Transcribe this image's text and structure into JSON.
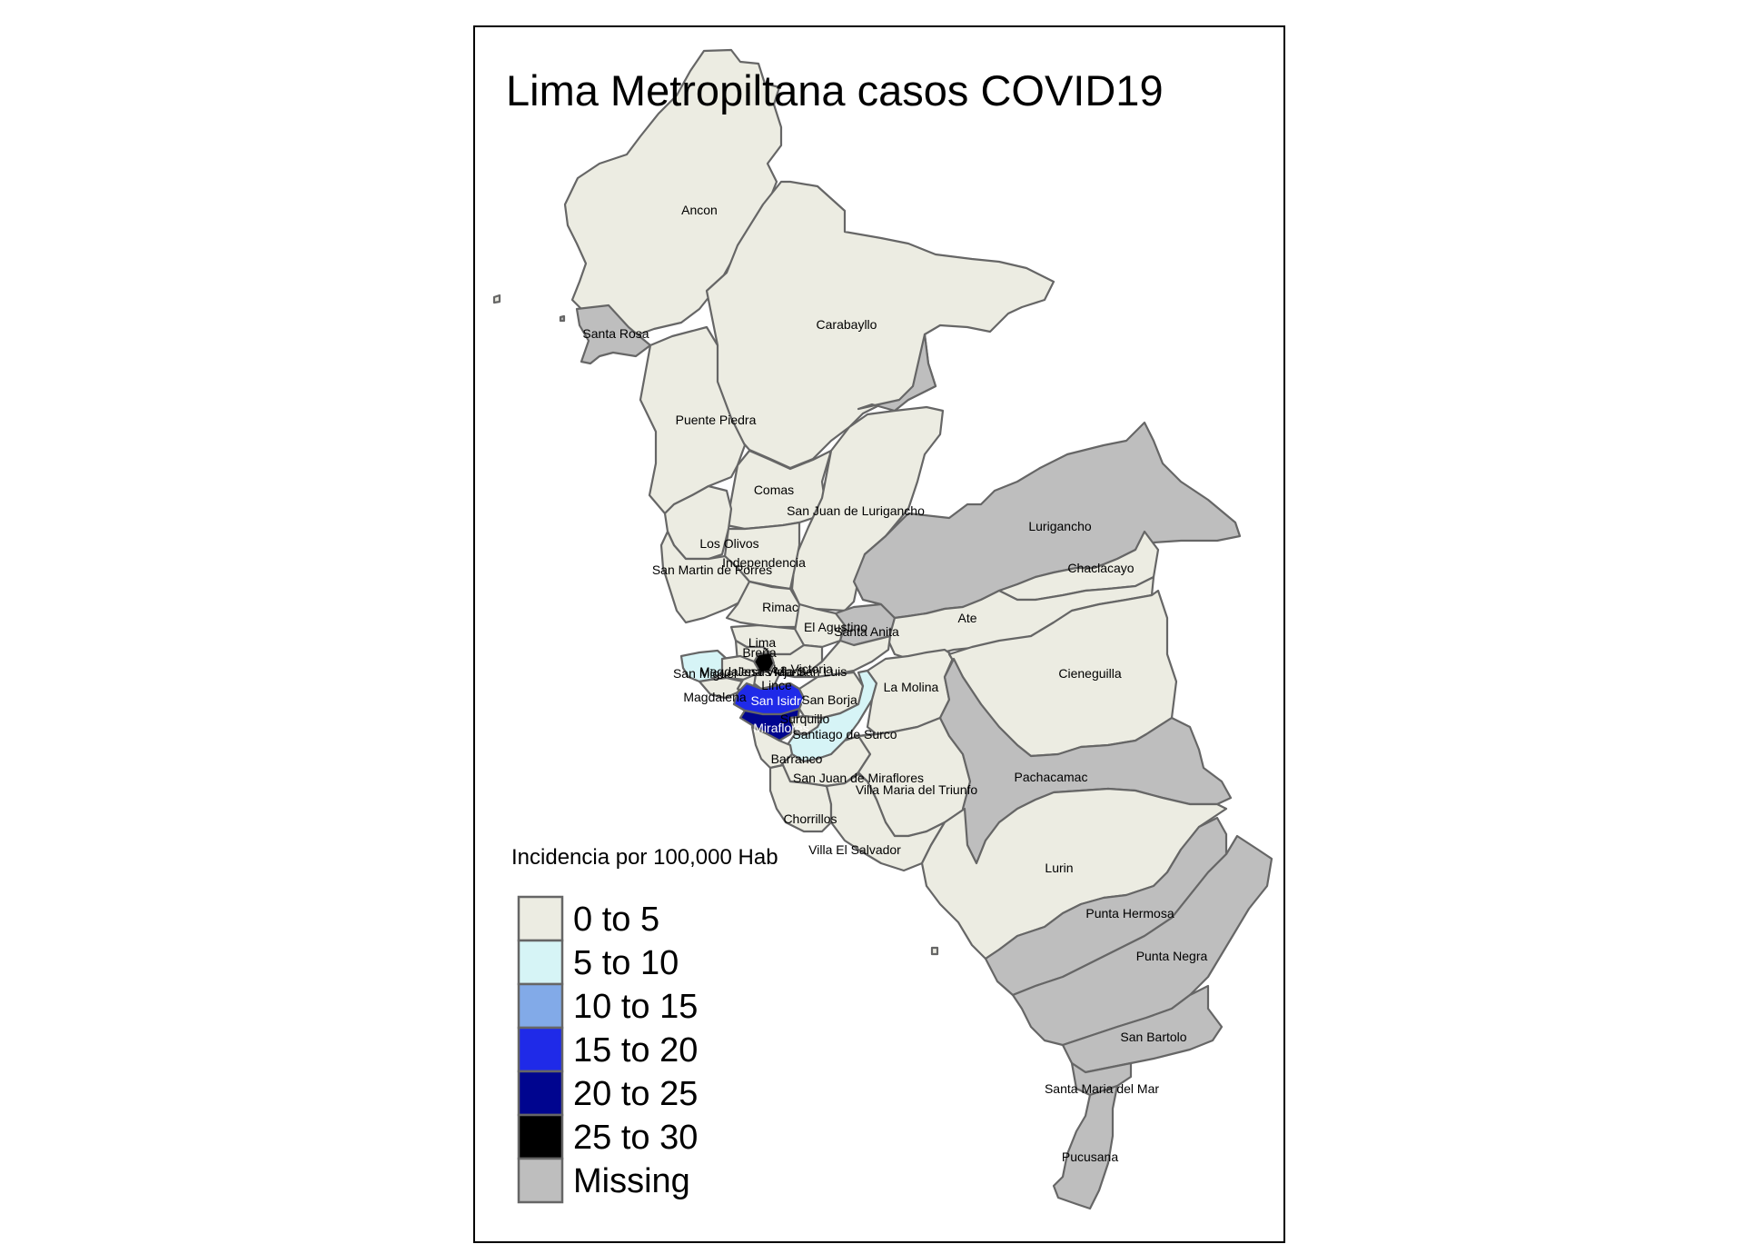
{
  "title": "Lima Metropiltana casos COVID19",
  "legend": {
    "title": "Incidencia por 100,000 Hab",
    "classes": [
      {
        "label": "0 to 5",
        "color": "#ecece2"
      },
      {
        "label": "5 to 10",
        "color": "#d6f4f6"
      },
      {
        "label": "10 to 15",
        "color": "#82aae8"
      },
      {
        "label": "15 to 20",
        "color": "#1f2ae8"
      },
      {
        "label": "20 to 25",
        "color": "#00058f"
      },
      {
        "label": "25 to 30",
        "color": "#000000"
      },
      {
        "label": "Missing",
        "color": "#bebebe"
      }
    ]
  },
  "districts": [
    {
      "name": "Ancon",
      "class": "0 to 5"
    },
    {
      "name": "Santa Rosa",
      "class": "Missing"
    },
    {
      "name": "Carabayllo",
      "class": "0 to 5"
    },
    {
      "name": "Puente Piedra",
      "class": "0 to 5"
    },
    {
      "name": "Comas",
      "class": "0 to 5"
    },
    {
      "name": "San Juan de Lurigancho",
      "class": "0 to 5"
    },
    {
      "name": "Los Olivos",
      "class": "0 to 5"
    },
    {
      "name": "Independencia",
      "class": "0 to 5"
    },
    {
      "name": "San Martin de Porres",
      "class": "0 to 5"
    },
    {
      "name": "Rimac",
      "class": "0 to 5"
    },
    {
      "name": "El Agustino",
      "class": "0 to 5"
    },
    {
      "name": "Santa Anita",
      "class": "Missing"
    },
    {
      "name": "Lurigancho",
      "class": "Missing"
    },
    {
      "name": "Chaclacayo",
      "class": "0 to 5"
    },
    {
      "name": "Ate",
      "class": "0 to 5"
    },
    {
      "name": "Lima",
      "class": "0 to 5"
    },
    {
      "name": "Breña",
      "class": "0 to 5"
    },
    {
      "name": "La Victoria",
      "class": "25 to 30"
    },
    {
      "name": "San Luis",
      "class": "0 to 5"
    },
    {
      "name": "Magdalena Vieja",
      "class": "0 to 5"
    },
    {
      "name": "San Miguel",
      "class": "5 to 10"
    },
    {
      "name": "Magdalena",
      "class": "0 to 5"
    },
    {
      "name": "Lince",
      "class": "0 to 5"
    },
    {
      "name": "Jesus Maria",
      "class": "0 to 5"
    },
    {
      "name": "San Isidro",
      "class": "15 to 20"
    },
    {
      "name": "San Borja",
      "class": "0 to 5"
    },
    {
      "name": "Miraflores",
      "class": "20 to 25"
    },
    {
      "name": "Surquillo",
      "class": "0 to 5"
    },
    {
      "name": "Santiago de Surco",
      "class": "5 to 10"
    },
    {
      "name": "La Molina",
      "class": "0 to 5"
    },
    {
      "name": "Cieneguilla",
      "class": "0 to 5"
    },
    {
      "name": "Barranco",
      "class": "0 to 5"
    },
    {
      "name": "San Juan de Miraflores",
      "class": "0 to 5"
    },
    {
      "name": "Villa Maria del Triunfo",
      "class": "0 to 5"
    },
    {
      "name": "Pachacamac",
      "class": "Missing"
    },
    {
      "name": "Chorrillos",
      "class": "0 to 5"
    },
    {
      "name": "Villa El Salvador",
      "class": "0 to 5"
    },
    {
      "name": "Lurin",
      "class": "0 to 5"
    },
    {
      "name": "Punta Hermosa",
      "class": "Missing"
    },
    {
      "name": "Punta Negra",
      "class": "Missing"
    },
    {
      "name": "San Bartolo",
      "class": "Missing"
    },
    {
      "name": "Santa Maria del Mar",
      "class": "Missing"
    },
    {
      "name": "Pucusana",
      "class": "Missing"
    }
  ]
}
